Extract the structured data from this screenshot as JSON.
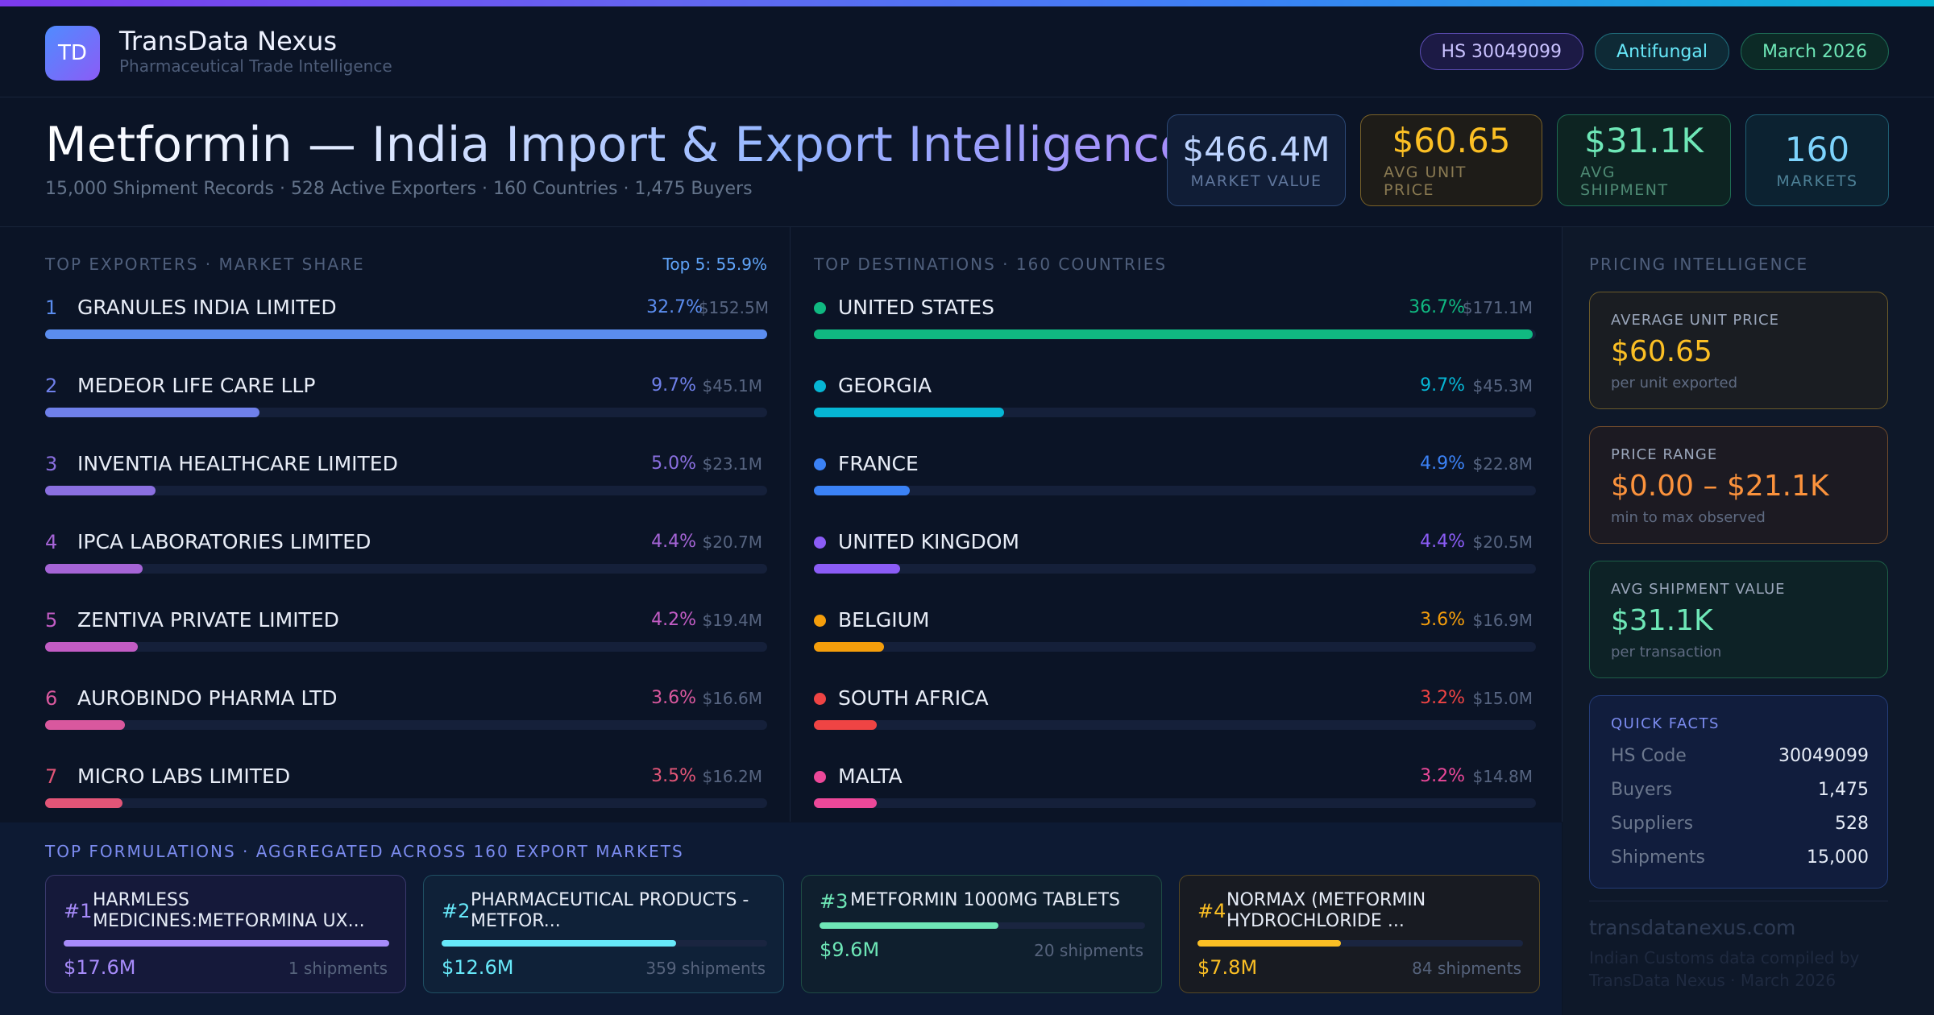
{
  "brand": {
    "logo_text": "TD",
    "name": "TransData Nexus",
    "subtitle": "Pharmaceutical Trade Intelligence"
  },
  "pills": {
    "hs": "HS 30049099",
    "category": "Antifungal",
    "period": "March 2026"
  },
  "title": "Metformin — India Import & Export Intelligence",
  "subtitle": "15,000 Shipment Records · 528 Active Exporters · 160 Countries · 1,475 Buyers",
  "kpis": [
    {
      "value": "$466.4M",
      "label": "MARKET VALUE"
    },
    {
      "value": "$60.65",
      "label": "AVG UNIT PRICE"
    },
    {
      "value": "$31.1K",
      "label": "AVG SHIPMENT"
    },
    {
      "value": "160",
      "label": "MARKETS"
    }
  ],
  "exporters": {
    "title": "TOP EXPORTERS · MARKET SHARE",
    "badge": "Top 5: 55.9%",
    "items": [
      {
        "rank": "1",
        "name": "GRANULES INDIA LIMITED",
        "pct": "32.7%",
        "share": 32.7,
        "amount": "$152.5M",
        "color": "#5b8def"
      },
      {
        "rank": "2",
        "name": "MEDEOR LIFE CARE LLP",
        "pct": "9.7%",
        "share": 9.7,
        "amount": "$45.1M",
        "color": "#6f80ea"
      },
      {
        "rank": "3",
        "name": "INVENTIA HEALTHCARE LIMITED",
        "pct": "5.0%",
        "share": 5.0,
        "amount": "$23.1M",
        "color": "#8a6fe0"
      },
      {
        "rank": "4",
        "name": "IPCA LABORATORIES LIMITED",
        "pct": "4.4%",
        "share": 4.4,
        "amount": "$20.7M",
        "color": "#a564d6"
      },
      {
        "rank": "5",
        "name": "ZENTIVA PRIVATE LIMITED",
        "pct": "4.2%",
        "share": 4.2,
        "amount": "$19.4M",
        "color": "#c25cc4"
      },
      {
        "rank": "6",
        "name": "AUROBINDO PHARMA LTD",
        "pct": "3.6%",
        "share": 3.6,
        "amount": "$16.6M",
        "color": "#d9589e"
      },
      {
        "rank": "7",
        "name": "MICRO LABS LIMITED",
        "pct": "3.5%",
        "share": 3.5,
        "amount": "$16.2M",
        "color": "#e25577"
      }
    ]
  },
  "destinations": {
    "title": "TOP DESTINATIONS · 160 COUNTRIES",
    "items": [
      {
        "name": "UNITED STATES",
        "pct": "36.7%",
        "share": 36.7,
        "amount": "$171.1M",
        "color": "#10b981"
      },
      {
        "name": "GEORGIA",
        "pct": "9.7%",
        "share": 9.7,
        "amount": "$45.3M",
        "color": "#06b6d4"
      },
      {
        "name": "FRANCE",
        "pct": "4.9%",
        "share": 4.9,
        "amount": "$22.8M",
        "color": "#3b82f6"
      },
      {
        "name": "UNITED KINGDOM",
        "pct": "4.4%",
        "share": 4.4,
        "amount": "$20.5M",
        "color": "#8b5cf6"
      },
      {
        "name": "BELGIUM",
        "pct": "3.6%",
        "share": 3.6,
        "amount": "$16.9M",
        "color": "#f59e0b"
      },
      {
        "name": "SOUTH AFRICA",
        "pct": "3.2%",
        "share": 3.2,
        "amount": "$15.0M",
        "color": "#ef4444"
      },
      {
        "name": "MALTA",
        "pct": "3.2%",
        "share": 3.2,
        "amount": "$14.8M",
        "color": "#ec4899"
      }
    ]
  },
  "formulations": {
    "title": "TOP FORMULATIONS · AGGREGATED ACROSS 160 EXPORT MARKETS",
    "items": [
      {
        "num": "#1",
        "name": "HARMLESS MEDICINES:METFORMINA UX...",
        "value": "$17.6M",
        "shipments": "1 shipments",
        "level": 1.0,
        "color": "#a78bfa"
      },
      {
        "num": "#2",
        "name": "PHARMACEUTICAL PRODUCTS - METFOR...",
        "value": "$12.6M",
        "shipments": "359 shipments",
        "level": 0.72,
        "color": "#67e8f9"
      },
      {
        "num": "#3",
        "name": "METFORMIN 1000MG TABLETS",
        "value": "$9.6M",
        "shipments": "20 shipments",
        "level": 0.55,
        "color": "#6ee7b7"
      },
      {
        "num": "#4",
        "name": "NORMAX (METFORMIN HYDROCHLORIDE ...",
        "value": "$7.8M",
        "shipments": "84 shipments",
        "level": 0.44,
        "color": "#fbbf24"
      }
    ]
  },
  "pricing": {
    "title": "PRICING INTELLIGENCE",
    "avg": {
      "label": "AVERAGE UNIT PRICE",
      "value": "$60.65",
      "note": "per unit exported"
    },
    "range": {
      "label": "PRICE RANGE",
      "value": "$0.00 – $21.1K",
      "note": "min to max observed"
    },
    "shipment": {
      "label": "AVG SHIPMENT VALUE",
      "value": "$31.1K",
      "note": "per transaction"
    }
  },
  "quick_facts": {
    "title": "QUICK FACTS",
    "rows": [
      {
        "key": "HS Code",
        "value": "30049099"
      },
      {
        "key": "Buyers",
        "value": "1,475"
      },
      {
        "key": "Suppliers",
        "value": "528"
      },
      {
        "key": "Shipments",
        "value": "15,000"
      }
    ]
  },
  "footer": {
    "site": "transdatanexus.com",
    "note": "Indian Customs data compiled by TransData Nexus · March 2026"
  }
}
